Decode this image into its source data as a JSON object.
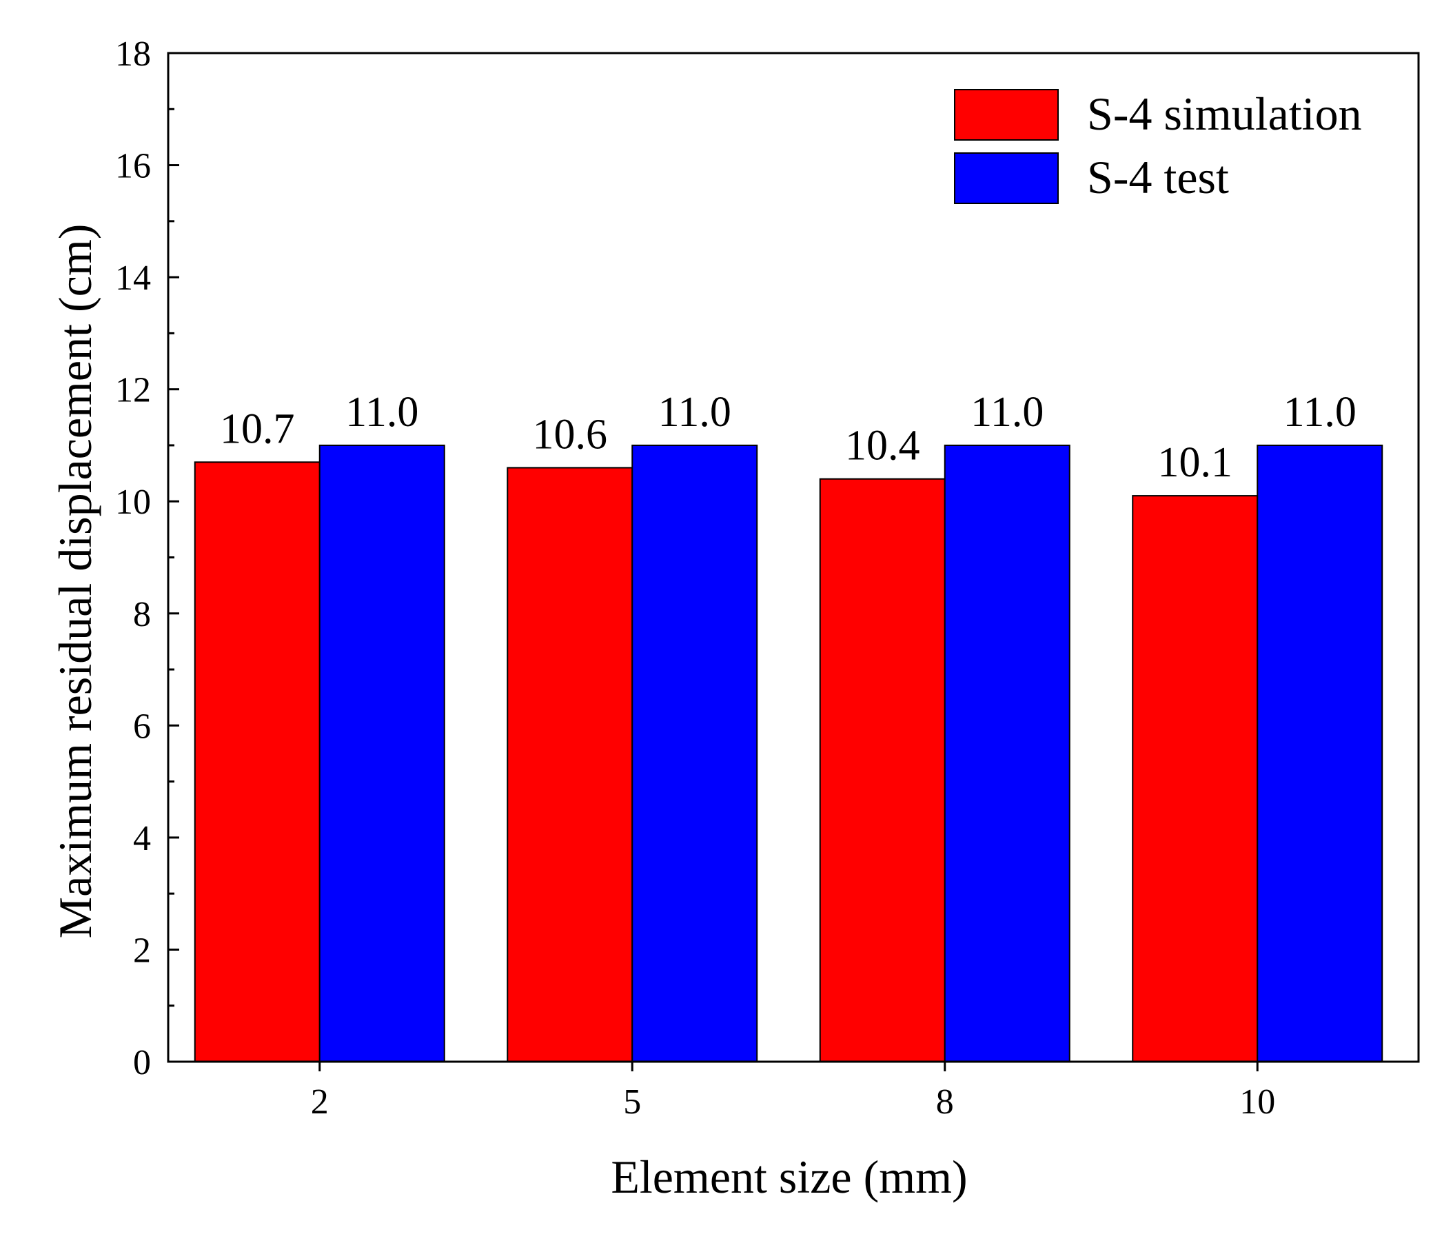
{
  "chart_data": {
    "type": "bar",
    "title": "",
    "xlabel": "Element size (mm)",
    "ylabel": "Maximum residual displacement (cm)",
    "categories": [
      "2",
      "5",
      "8",
      "10"
    ],
    "series": [
      {
        "name": "S-4 simulation",
        "color": "#ff0000",
        "values": [
          10.7,
          10.6,
          10.4,
          10.1
        ],
        "labels": [
          "10.7",
          "10.6",
          "10.4",
          "10.1"
        ]
      },
      {
        "name": "S-4 test",
        "color": "#0000ff",
        "values": [
          11.0,
          11.0,
          11.0,
          11.0
        ],
        "labels": [
          "11.0",
          "11.0",
          "11.0",
          "11.0"
        ]
      }
    ],
    "ylim": [
      0,
      18
    ],
    "yticks": [
      "0",
      "2",
      "4",
      "6",
      "8",
      "10",
      "12",
      "14",
      "16",
      "18"
    ],
    "grid": false,
    "legend_position": "top-right"
  }
}
